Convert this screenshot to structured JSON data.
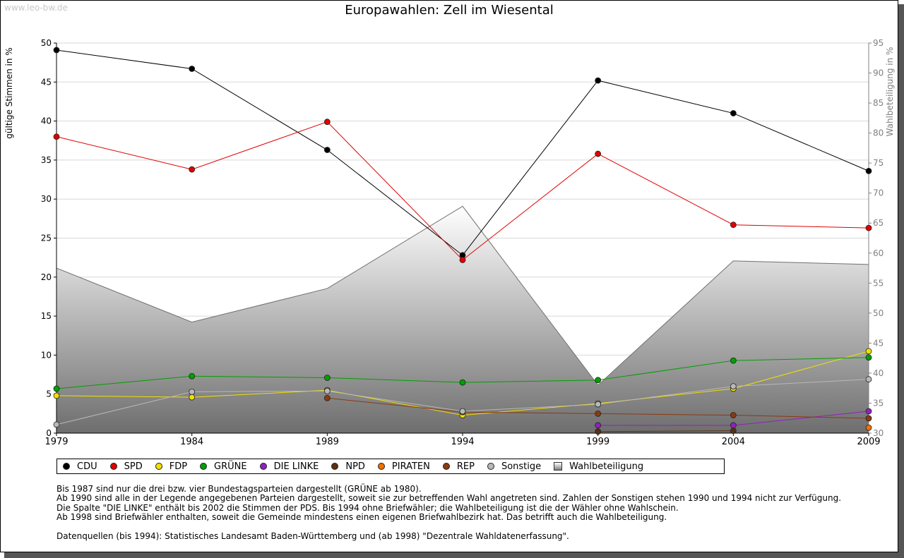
{
  "watermark": "www.leo-bw.de",
  "chart_data": {
    "type": "line",
    "title": "Europawahlen: Zell im Wiesental",
    "ylabel": "gültige Stimmen in %",
    "y2label": "Wahlbeteiligung in %",
    "categories": [
      "1979",
      "1984",
      "1989",
      "1994",
      "1999",
      "2004",
      "2009"
    ],
    "ylim": [
      0,
      50
    ],
    "y2lim": [
      30,
      95
    ],
    "yticks": [
      "0",
      "5",
      "10",
      "15",
      "20",
      "25",
      "30",
      "35",
      "40",
      "45",
      "50"
    ],
    "y2ticks": [
      "30",
      "35",
      "40",
      "45",
      "50",
      "55",
      "60",
      "65",
      "70",
      "75",
      "80",
      "85",
      "90",
      "95"
    ],
    "grid": true,
    "legend_position": "bottom",
    "series": [
      {
        "name": "CDU",
        "color": "#000000",
        "values": [
          49.1,
          46.7,
          36.3,
          22.8,
          45.2,
          41.0,
          33.6
        ]
      },
      {
        "name": "SPD",
        "color": "#e00000",
        "values": [
          38.0,
          33.8,
          39.9,
          22.2,
          35.8,
          26.7,
          26.3
        ]
      },
      {
        "name": "FDP",
        "color": "#f0e000",
        "values": [
          4.8,
          4.6,
          5.5,
          2.3,
          3.8,
          5.7,
          10.5
        ]
      },
      {
        "name": "GRÜNE",
        "color": "#00a000",
        "values": [
          5.7,
          7.3,
          7.1,
          6.5,
          6.8,
          9.3,
          9.7
        ]
      },
      {
        "name": "DIE LINKE",
        "color": "#9020c0",
        "values": [
          null,
          null,
          null,
          null,
          1.0,
          1.0,
          2.8
        ]
      },
      {
        "name": "NPD",
        "color": "#5a3010",
        "values": [
          null,
          null,
          null,
          null,
          0.2,
          0.3,
          null
        ]
      },
      {
        "name": "PIRATEN",
        "color": "#f07000",
        "values": [
          null,
          null,
          null,
          null,
          null,
          null,
          0.7
        ]
      },
      {
        "name": "REP",
        "color": "#8a3a10",
        "values": [
          null,
          null,
          4.5,
          2.7,
          2.5,
          2.3,
          1.9
        ]
      },
      {
        "name": "Sonstige",
        "color": "#b8b8b8",
        "values": [
          1.1,
          5.3,
          5.4,
          2.8,
          3.7,
          6.0,
          6.9
        ]
      }
    ],
    "turnout": {
      "name": "Wahlbeteiligung",
      "color": "#a8a8a8",
      "values": [
        57.5,
        48.5,
        54.1,
        67.8,
        38.0,
        58.7,
        58.1
      ]
    }
  },
  "notes": [
    "Bis 1987 sind nur die drei bzw. vier Bundestagsparteien dargestellt (GRÜNE ab 1980).",
    "Ab 1990 sind alle in der Legende angegebenen Parteien dargestellt, soweit sie zur betreffenden Wahl angetreten sind. Zahlen der Sonstigen stehen 1990 und 1994 nicht zur Verfügung.",
    "Die Spalte \"DIE LINKE\" enthält bis 2002 die Stimmen der PDS. Bis 1994 ohne Briefwähler; die Wahlbeteiligung ist die der Wähler ohne Wahlschein.",
    "Ab 1998 sind Briefwähler enthalten, soweit die Gemeinde mindestens einen eigenen Briefwahlbezirk hat. Das betrifft auch die Wahlbeteiligung."
  ],
  "sources": "Datenquellen (bis 1994): Statistisches Landesamt Baden-Württemberg und (ab 1998) \"Dezentrale Wahldatenerfassung\"."
}
